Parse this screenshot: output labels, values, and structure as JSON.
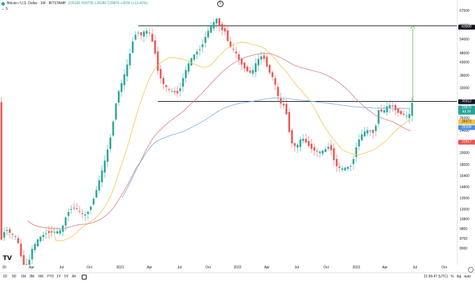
{
  "legend": {
    "title": "Bitcoin / U.S. Dollar · 1W · BITSTAMP",
    "ohlc": "O26336 H30735 L26280 C29876 +3536 (+13.42%)",
    "sub": "5"
  },
  "event_marker": "5",
  "timeframes": [
    "1D",
    "5D",
    "1M",
    "3M",
    "6M",
    "YTD",
    "1Y",
    "5Y",
    "All"
  ],
  "status": {
    "time": "21:56:47 (UTC)",
    "percent": "%",
    "log": "log",
    "auto": "auto"
  },
  "time_axis": [
    "20",
    "Apr",
    "Jul",
    "Oct",
    "2021",
    "Apr",
    "Jul",
    "Oct",
    "2022",
    "Apr",
    "Jul",
    "Oct",
    "2023",
    "Apr",
    "Jul",
    "Oct"
  ],
  "price_axis": [
    "67500",
    "60000",
    "54000",
    "48000",
    "43000",
    "38000",
    "33000",
    "26000",
    "24000",
    "22000",
    "20000",
    "18000",
    "16400",
    "14800",
    "13500",
    "12000",
    "10800",
    "9800",
    "8700",
    "8000"
  ],
  "price_tags": [
    {
      "text": "60000",
      "bg": "#131722",
      "fg": "#ffffff"
    },
    {
      "text": "30312",
      "bg": "#131722",
      "fg": "#ffffff"
    },
    {
      "text": "29876",
      "bg": "#26a69a",
      "fg": "#ffffff"
    },
    {
      "text": "4d 3h",
      "bg": "#26a69a",
      "fg": "#ffffff"
    },
    {
      "text": "26372",
      "bg": "#f5c242",
      "fg": "#131722"
    },
    {
      "text": "26108",
      "bg": "#4a90e2",
      "fg": "#ffffff"
    },
    {
      "text": "22417",
      "bg": "#ef5350",
      "fg": "#ffffff"
    }
  ],
  "colors": {
    "up": "#26a69a",
    "down": "#ef5350",
    "ma_short": "#f5c242",
    "ma_mid": "#e57373",
    "ma_long": "#6fa8dc",
    "target_arrow": "#4caf50"
  },
  "chart_data": {
    "type": "candlestick",
    "symbol": "Bitcoin / U.S. Dollar",
    "interval": "1W",
    "exchange": "BITSTAMP",
    "price_scale": "log",
    "horizontal_levels": [
      60000,
      30312
    ],
    "last_close": 29876,
    "moving_average_values": [
      26372,
      26108,
      22417
    ],
    "target_arrow": {
      "from": 30312,
      "to": 60000
    }
  }
}
